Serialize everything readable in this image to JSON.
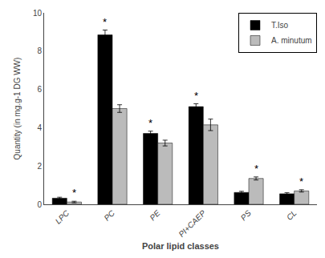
{
  "chart_data": {
    "type": "bar",
    "xlabel": "Polar lipid classes",
    "ylabel": "Quantity (in mg.g-1 DG WW)",
    "categories": [
      "LPC",
      "PC",
      "PE",
      "PI+CAEP",
      "PS",
      "CL"
    ],
    "series": [
      {
        "name": "T.Iso",
        "color": "#000000",
        "values": [
          0.32,
          8.85,
          3.7,
          5.1,
          0.62,
          0.55
        ],
        "errors": [
          0.05,
          0.25,
          0.12,
          0.15,
          0.06,
          0.06
        ]
      },
      {
        "name": "A. minutum",
        "color": "#BBBBBB",
        "values": [
          0.12,
          5.0,
          3.2,
          4.15,
          1.35,
          0.7
        ],
        "errors": [
          0.04,
          0.2,
          0.15,
          0.3,
          0.08,
          0.06
        ]
      }
    ],
    "annotations": [
      {
        "text": "*",
        "category": "LPC",
        "series": "A. minutum"
      },
      {
        "text": "*",
        "category": "PC",
        "series": "T.Iso"
      },
      {
        "text": "*",
        "category": "PE",
        "series": "T.Iso"
      },
      {
        "text": "*",
        "category": "PI+CAEP",
        "series": "T.Iso"
      },
      {
        "text": "*",
        "category": "PS",
        "series": "A. minutum"
      },
      {
        "text": "*",
        "category": "CL",
        "series": "A. minutum"
      }
    ],
    "ylim": [
      0,
      10
    ],
    "yticks": [
      0,
      2,
      4,
      6,
      8,
      10
    ],
    "grid": false,
    "legend": "upper right"
  }
}
